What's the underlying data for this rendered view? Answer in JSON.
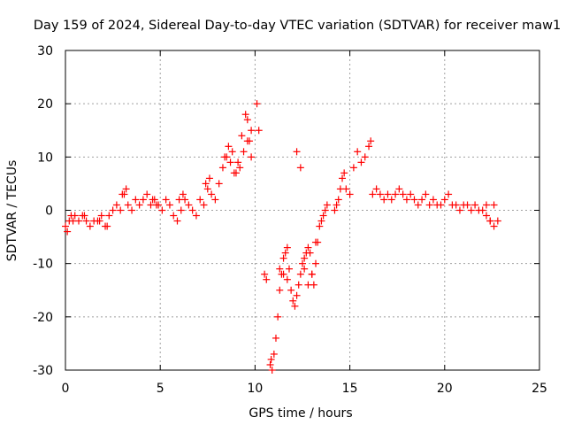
{
  "chart_data": {
    "type": "scatter",
    "title": "Day 159 of 2024, Sidereal Day-to-day VTEC variation (SDTVAR) for receiver maw1",
    "xlabel": "GPS time / hours",
    "ylabel": "SDTVAR / TECUs",
    "xlim": [
      0,
      25
    ],
    "ylim": [
      -30,
      30
    ],
    "x_ticks": [
      0,
      5,
      10,
      15,
      20,
      25
    ],
    "x_tick_labels": [
      "0",
      "5",
      "10",
      "15",
      "20",
      "25"
    ],
    "y_ticks": [
      -30,
      -20,
      -10,
      0,
      10,
      20,
      30
    ],
    "y_tick_labels": [
      "-30",
      "-20",
      "-10",
      "0",
      "10",
      "20",
      "30"
    ],
    "grid": true,
    "marker": "+",
    "marker_color": "#ff0000",
    "series": [
      {
        "name": "SDTVAR",
        "x": [
          0.0,
          0.1,
          0.2,
          0.3,
          0.4,
          0.5,
          0.7,
          0.9,
          1.1,
          1.3,
          1.5,
          1.7,
          1.9,
          2.1,
          2.3,
          2.5,
          2.7,
          2.9,
          3.1,
          3.3,
          3.5,
          3.7,
          3.9,
          4.1,
          4.3,
          4.5,
          4.7,
          4.9,
          5.1,
          5.3,
          5.5,
          5.7,
          5.9,
          6.1,
          6.3,
          6.5,
          6.7,
          6.9,
          7.1,
          7.3,
          7.5,
          7.7,
          7.9,
          8.1,
          8.3,
          8.5,
          8.7,
          8.9,
          9.1,
          9.3,
          9.5,
          9.6,
          9.7,
          9.8,
          10.1,
          10.2,
          10.8,
          10.85,
          10.9,
          11.0,
          11.1,
          11.2,
          11.3,
          11.4,
          11.5,
          11.6,
          11.7,
          11.8,
          11.9,
          12.0,
          12.1,
          12.2,
          12.3,
          12.4,
          12.5,
          12.6,
          12.7,
          12.8,
          12.9,
          13.0,
          13.1,
          13.2,
          13.3,
          13.4,
          13.5,
          13.6,
          13.7,
          13.8,
          14.2,
          14.3,
          14.4,
          14.5,
          14.6,
          14.7,
          14.8,
          15.0,
          15.2,
          15.4,
          15.6,
          15.8,
          16.0,
          16.1,
          16.2,
          16.4,
          16.6,
          16.8,
          17.0,
          17.2,
          17.4,
          17.6,
          17.8,
          18.0,
          18.2,
          18.4,
          18.6,
          18.8,
          19.0,
          19.2,
          19.4,
          19.6,
          19.8,
          20.0,
          20.2,
          20.4,
          20.6,
          20.8,
          21.0,
          21.2,
          21.4,
          21.6,
          21.8,
          22.0,
          22.2,
          22.4,
          22.6,
          22.8,
          9.0,
          9.2,
          9.4,
          9.6,
          9.8,
          8.8,
          8.6,
          8.4,
          10.5,
          10.6,
          11.3,
          11.5,
          11.7,
          12.2,
          12.4,
          12.6,
          12.8,
          13.0,
          13.2,
          3.0,
          3.2,
          4.6,
          4.8,
          6.0,
          6.2,
          7.4,
          7.6,
          1.0,
          1.8,
          2.2,
          22.2,
          22.4,
          22.6
        ],
        "y": [
          -3,
          -4,
          -2,
          -1,
          -2,
          -1,
          -2,
          -1,
          -2,
          -3,
          -2,
          -2,
          -1,
          -3,
          -1,
          0,
          1,
          0,
          3,
          1,
          0,
          2,
          1,
          2,
          3,
          1,
          2,
          1,
          0,
          2,
          1,
          -1,
          -2,
          0,
          2,
          1,
          0,
          -1,
          2,
          1,
          4,
          3,
          2,
          5,
          8,
          10,
          9,
          7,
          9,
          14,
          18,
          17,
          13,
          10,
          20,
          15,
          -29,
          -28,
          -30,
          -27,
          -24,
          -20,
          -15,
          -12,
          -9,
          -8,
          -7,
          -11,
          -15,
          -17,
          -18,
          -16,
          -14,
          -12,
          -10,
          -9,
          -8,
          -7,
          -8,
          -12,
          -14,
          -10,
          -6,
          -3,
          -2,
          -1,
          0,
          1,
          0,
          1,
          2,
          4,
          6,
          7,
          4,
          3,
          8,
          11,
          9,
          10,
          12,
          13,
          3,
          4,
          3,
          2,
          3,
          2,
          3,
          4,
          3,
          2,
          3,
          2,
          1,
          2,
          3,
          1,
          2,
          1,
          1,
          2,
          3,
          1,
          1,
          0,
          1,
          1,
          0,
          1,
          0,
          0,
          1,
          -2,
          -3,
          -2,
          7,
          8,
          11,
          13,
          15,
          11,
          12,
          10,
          -12,
          -13,
          -11,
          -12,
          -13,
          11,
          8,
          -11,
          -14,
          -12,
          -6,
          3,
          4,
          2,
          1,
          2,
          3,
          5,
          6,
          -1,
          -2,
          -3,
          -1,
          -2,
          1
        ]
      }
    ]
  }
}
